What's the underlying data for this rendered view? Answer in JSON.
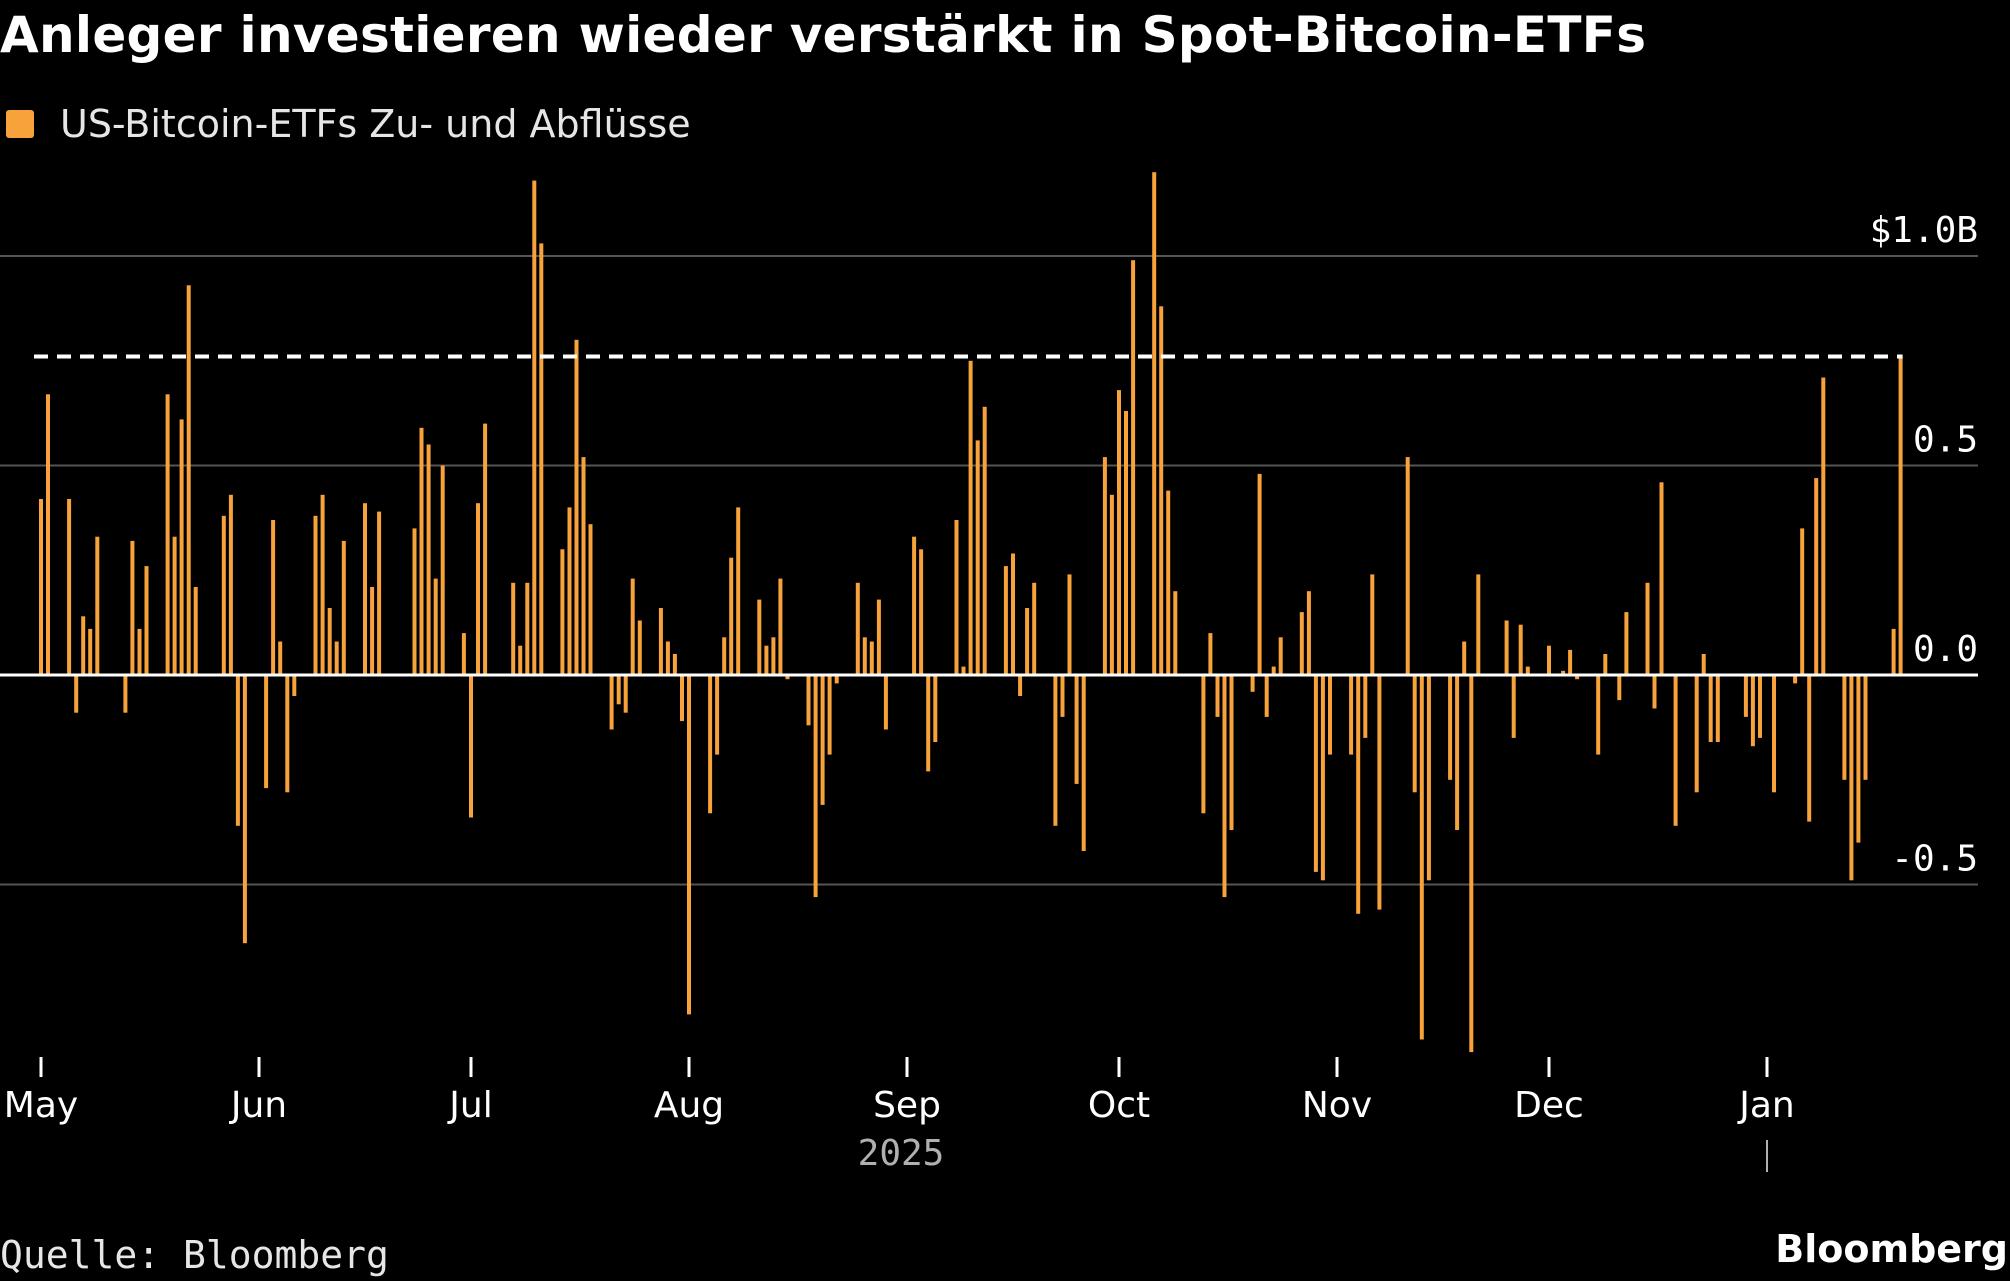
{
  "header": {
    "title": "Anleger investieren wieder verstärkt in Spot-Bitcoin-ETFs"
  },
  "legend": {
    "label": "US-Bitcoin-ETFs Zu- und Abflüsse",
    "color": "#f7a23b"
  },
  "footer": {
    "source": "Quelle: Bloomberg",
    "brand": "Bloomberg"
  },
  "colors": {
    "bar": "#f7a23b",
    "background": "#000000",
    "grid": "#555555",
    "zero_line": "#ffffff",
    "reference_line": "#ffffff"
  },
  "chart_data": {
    "type": "bar",
    "title": "Anleger investieren wieder verstärkt in Spot-Bitcoin-ETFs",
    "series_name": "US-Bitcoin-ETFs Zu- und Abflüsse",
    "xlabel": "2025",
    "ylabel": "",
    "y_unit": "billion USD",
    "ylim": [
      -0.9,
      1.2
    ],
    "yticks": [
      {
        "value": 1.0,
        "label": "$1.0B"
      },
      {
        "value": 0.5,
        "label": "0.5"
      },
      {
        "value": 0.0,
        "label": "0.0"
      },
      {
        "value": -0.5,
        "label": "-0.5"
      }
    ],
    "x_axis": {
      "start": "2025-05-01",
      "end": "2026-01-28",
      "ticks": [
        {
          "date": "2025-05-01",
          "label": "May"
        },
        {
          "date": "2025-06-01",
          "label": "Jun"
        },
        {
          "date": "2025-07-01",
          "label": "Jul"
        },
        {
          "date": "2025-08-01",
          "label": "Aug"
        },
        {
          "date": "2025-09-01",
          "label": "Sep"
        },
        {
          "date": "2025-10-01",
          "label": "Oct"
        },
        {
          "date": "2025-11-01",
          "label": "Nov"
        },
        {
          "date": "2025-12-01",
          "label": "Dec"
        },
        {
          "date": "2026-01-01",
          "label": "Jan"
        }
      ],
      "year_label": "2025",
      "year_boundary_date": "2026-01-01"
    },
    "reference_line": {
      "value": 0.76,
      "style": "dashed"
    },
    "grid": "horizontal",
    "bars": [
      {
        "x": "2025-05-01",
        "y": 0.42
      },
      {
        "x": "2025-05-02",
        "y": 0.67
      },
      {
        "x": "2025-05-05",
        "y": 0.42
      },
      {
        "x": "2025-05-06",
        "y": -0.09
      },
      {
        "x": "2025-05-07",
        "y": 0.14
      },
      {
        "x": "2025-05-08",
        "y": 0.11
      },
      {
        "x": "2025-05-09",
        "y": 0.33
      },
      {
        "x": "2025-05-13",
        "y": -0.09
      },
      {
        "x": "2025-05-14",
        "y": 0.32
      },
      {
        "x": "2025-05-15",
        "y": 0.11
      },
      {
        "x": "2025-05-16",
        "y": 0.26
      },
      {
        "x": "2025-05-19",
        "y": 0.67
      },
      {
        "x": "2025-05-20",
        "y": 0.33
      },
      {
        "x": "2025-05-21",
        "y": 0.61
      },
      {
        "x": "2025-05-22",
        "y": 0.93
      },
      {
        "x": "2025-05-23",
        "y": 0.21
      },
      {
        "x": "2025-05-27",
        "y": 0.38
      },
      {
        "x": "2025-05-28",
        "y": 0.43
      },
      {
        "x": "2025-05-29",
        "y": -0.36
      },
      {
        "x": "2025-05-30",
        "y": -0.64
      },
      {
        "x": "2025-06-02",
        "y": -0.27
      },
      {
        "x": "2025-06-03",
        "y": 0.37
      },
      {
        "x": "2025-06-04",
        "y": 0.08
      },
      {
        "x": "2025-06-05",
        "y": -0.28
      },
      {
        "x": "2025-06-06",
        "y": -0.05
      },
      {
        "x": "2025-06-09",
        "y": 0.38
      },
      {
        "x": "2025-06-10",
        "y": 0.43
      },
      {
        "x": "2025-06-11",
        "y": 0.16
      },
      {
        "x": "2025-06-12",
        "y": 0.08
      },
      {
        "x": "2025-06-13",
        "y": 0.32
      },
      {
        "x": "2025-06-16",
        "y": 0.41
      },
      {
        "x": "2025-06-17",
        "y": 0.21
      },
      {
        "x": "2025-06-18",
        "y": 0.39
      },
      {
        "x": "2025-06-23",
        "y": 0.35
      },
      {
        "x": "2025-06-24",
        "y": 0.59
      },
      {
        "x": "2025-06-25",
        "y": 0.55
      },
      {
        "x": "2025-06-26",
        "y": 0.23
      },
      {
        "x": "2025-06-27",
        "y": 0.5
      },
      {
        "x": "2025-06-30",
        "y": 0.1
      },
      {
        "x": "2025-07-01",
        "y": -0.34
      },
      {
        "x": "2025-07-02",
        "y": 0.41
      },
      {
        "x": "2025-07-03",
        "y": 0.6
      },
      {
        "x": "2025-07-07",
        "y": 0.22
      },
      {
        "x": "2025-07-08",
        "y": 0.07
      },
      {
        "x": "2025-07-09",
        "y": 0.22
      },
      {
        "x": "2025-07-10",
        "y": 1.18
      },
      {
        "x": "2025-07-11",
        "y": 1.03
      },
      {
        "x": "2025-07-14",
        "y": 0.3
      },
      {
        "x": "2025-07-15",
        "y": 0.4
      },
      {
        "x": "2025-07-16",
        "y": 0.8
      },
      {
        "x": "2025-07-17",
        "y": 0.52
      },
      {
        "x": "2025-07-18",
        "y": 0.36
      },
      {
        "x": "2025-07-21",
        "y": -0.13
      },
      {
        "x": "2025-07-22",
        "y": -0.07
      },
      {
        "x": "2025-07-23",
        "y": -0.09
      },
      {
        "x": "2025-07-24",
        "y": 0.23
      },
      {
        "x": "2025-07-25",
        "y": 0.13
      },
      {
        "x": "2025-07-28",
        "y": 0.16
      },
      {
        "x": "2025-07-29",
        "y": 0.08
      },
      {
        "x": "2025-07-30",
        "y": 0.05
      },
      {
        "x": "2025-07-31",
        "y": -0.11
      },
      {
        "x": "2025-08-01",
        "y": -0.81
      },
      {
        "x": "2025-08-04",
        "y": -0.33
      },
      {
        "x": "2025-08-05",
        "y": -0.19
      },
      {
        "x": "2025-08-06",
        "y": 0.09
      },
      {
        "x": "2025-08-07",
        "y": 0.28
      },
      {
        "x": "2025-08-08",
        "y": 0.4
      },
      {
        "x": "2025-08-11",
        "y": 0.18
      },
      {
        "x": "2025-08-12",
        "y": 0.07
      },
      {
        "x": "2025-08-13",
        "y": 0.09
      },
      {
        "x": "2025-08-14",
        "y": 0.23
      },
      {
        "x": "2025-08-15",
        "y": -0.01
      },
      {
        "x": "2025-08-18",
        "y": -0.12
      },
      {
        "x": "2025-08-19",
        "y": -0.53
      },
      {
        "x": "2025-08-20",
        "y": -0.31
      },
      {
        "x": "2025-08-21",
        "y": -0.19
      },
      {
        "x": "2025-08-22",
        "y": -0.02
      },
      {
        "x": "2025-08-25",
        "y": 0.22
      },
      {
        "x": "2025-08-26",
        "y": 0.09
      },
      {
        "x": "2025-08-27",
        "y": 0.08
      },
      {
        "x": "2025-08-28",
        "y": 0.18
      },
      {
        "x": "2025-08-29",
        "y": -0.13
      },
      {
        "x": "2025-09-02",
        "y": 0.33
      },
      {
        "x": "2025-09-03",
        "y": 0.3
      },
      {
        "x": "2025-09-04",
        "y": -0.23
      },
      {
        "x": "2025-09-05",
        "y": -0.16
      },
      {
        "x": "2025-09-08",
        "y": 0.37
      },
      {
        "x": "2025-09-09",
        "y": 0.02
      },
      {
        "x": "2025-09-10",
        "y": 0.75
      },
      {
        "x": "2025-09-11",
        "y": 0.56
      },
      {
        "x": "2025-09-12",
        "y": 0.64
      },
      {
        "x": "2025-09-15",
        "y": 0.26
      },
      {
        "x": "2025-09-16",
        "y": 0.29
      },
      {
        "x": "2025-09-17",
        "y": -0.05
      },
      {
        "x": "2025-09-18",
        "y": 0.16
      },
      {
        "x": "2025-09-19",
        "y": 0.22
      },
      {
        "x": "2025-09-22",
        "y": -0.36
      },
      {
        "x": "2025-09-23",
        "y": -0.1
      },
      {
        "x": "2025-09-24",
        "y": 0.24
      },
      {
        "x": "2025-09-25",
        "y": -0.26
      },
      {
        "x": "2025-09-26",
        "y": -0.42
      },
      {
        "x": "2025-09-29",
        "y": 0.52
      },
      {
        "x": "2025-09-30",
        "y": 0.43
      },
      {
        "x": "2025-10-01",
        "y": 0.68
      },
      {
        "x": "2025-10-02",
        "y": 0.63
      },
      {
        "x": "2025-10-03",
        "y": 0.99
      },
      {
        "x": "2025-10-06",
        "y": 1.2
      },
      {
        "x": "2025-10-07",
        "y": 0.88
      },
      {
        "x": "2025-10-08",
        "y": 0.44
      },
      {
        "x": "2025-10-09",
        "y": 0.2
      },
      {
        "x": "2025-10-13",
        "y": -0.33
      },
      {
        "x": "2025-10-14",
        "y": 0.1
      },
      {
        "x": "2025-10-15",
        "y": -0.1
      },
      {
        "x": "2025-10-16",
        "y": -0.53
      },
      {
        "x": "2025-10-17",
        "y": -0.37
      },
      {
        "x": "2025-10-20",
        "y": -0.04
      },
      {
        "x": "2025-10-21",
        "y": 0.48
      },
      {
        "x": "2025-10-22",
        "y": -0.1
      },
      {
        "x": "2025-10-23",
        "y": 0.02
      },
      {
        "x": "2025-10-24",
        "y": 0.09
      },
      {
        "x": "2025-10-27",
        "y": 0.15
      },
      {
        "x": "2025-10-28",
        "y": 0.2
      },
      {
        "x": "2025-10-29",
        "y": -0.47
      },
      {
        "x": "2025-10-30",
        "y": -0.49
      },
      {
        "x": "2025-10-31",
        "y": -0.19
      },
      {
        "x": "2025-11-03",
        "y": -0.19
      },
      {
        "x": "2025-11-04",
        "y": -0.57
      },
      {
        "x": "2025-11-05",
        "y": -0.15
      },
      {
        "x": "2025-11-06",
        "y": 0.24
      },
      {
        "x": "2025-11-07",
        "y": -0.56
      },
      {
        "x": "2025-11-11",
        "y": 0.52
      },
      {
        "x": "2025-11-12",
        "y": -0.28
      },
      {
        "x": "2025-11-13",
        "y": -0.87
      },
      {
        "x": "2025-11-14",
        "y": -0.49
      },
      {
        "x": "2025-11-17",
        "y": -0.25
      },
      {
        "x": "2025-11-18",
        "y": -0.37
      },
      {
        "x": "2025-11-19",
        "y": 0.08
      },
      {
        "x": "2025-11-20",
        "y": -0.9
      },
      {
        "x": "2025-11-21",
        "y": 0.24
      },
      {
        "x": "2025-11-25",
        "y": 0.13
      },
      {
        "x": "2025-11-26",
        "y": -0.15
      },
      {
        "x": "2025-11-27",
        "y": 0.12
      },
      {
        "x": "2025-11-28",
        "y": 0.02
      },
      {
        "x": "2025-12-01",
        "y": 0.07
      },
      {
        "x": "2025-12-03",
        "y": 0.01
      },
      {
        "x": "2025-12-04",
        "y": 0.06
      },
      {
        "x": "2025-12-05",
        "y": -0.01
      },
      {
        "x": "2025-12-08",
        "y": -0.19
      },
      {
        "x": "2025-12-09",
        "y": 0.05
      },
      {
        "x": "2025-12-11",
        "y": -0.06
      },
      {
        "x": "2025-12-12",
        "y": 0.15
      },
      {
        "x": "2025-12-15",
        "y": 0.22
      },
      {
        "x": "2025-12-16",
        "y": -0.08
      },
      {
        "x": "2025-12-17",
        "y": 0.46
      },
      {
        "x": "2025-12-19",
        "y": -0.36
      },
      {
        "x": "2025-12-22",
        "y": -0.28
      },
      {
        "x": "2025-12-23",
        "y": 0.05
      },
      {
        "x": "2025-12-24",
        "y": -0.16
      },
      {
        "x": "2025-12-25",
        "y": -0.16
      },
      {
        "x": "2025-12-29",
        "y": -0.1
      },
      {
        "x": "2025-12-30",
        "y": -0.17
      },
      {
        "x": "2025-12-31",
        "y": -0.15
      },
      {
        "x": "2026-01-02",
        "y": -0.28
      },
      {
        "x": "2026-01-05",
        "y": -0.02
      },
      {
        "x": "2026-01-06",
        "y": 0.35
      },
      {
        "x": "2026-01-07",
        "y": -0.35
      },
      {
        "x": "2026-01-08",
        "y": 0.47
      },
      {
        "x": "2026-01-09",
        "y": 0.71
      },
      {
        "x": "2026-01-12",
        "y": -0.25
      },
      {
        "x": "2026-01-13",
        "y": -0.49
      },
      {
        "x": "2026-01-14",
        "y": -0.4
      },
      {
        "x": "2026-01-15",
        "y": -0.25
      },
      {
        "x": "2026-01-19",
        "y": 0.11
      },
      {
        "x": "2026-01-20",
        "y": 0.76
      }
    ]
  }
}
